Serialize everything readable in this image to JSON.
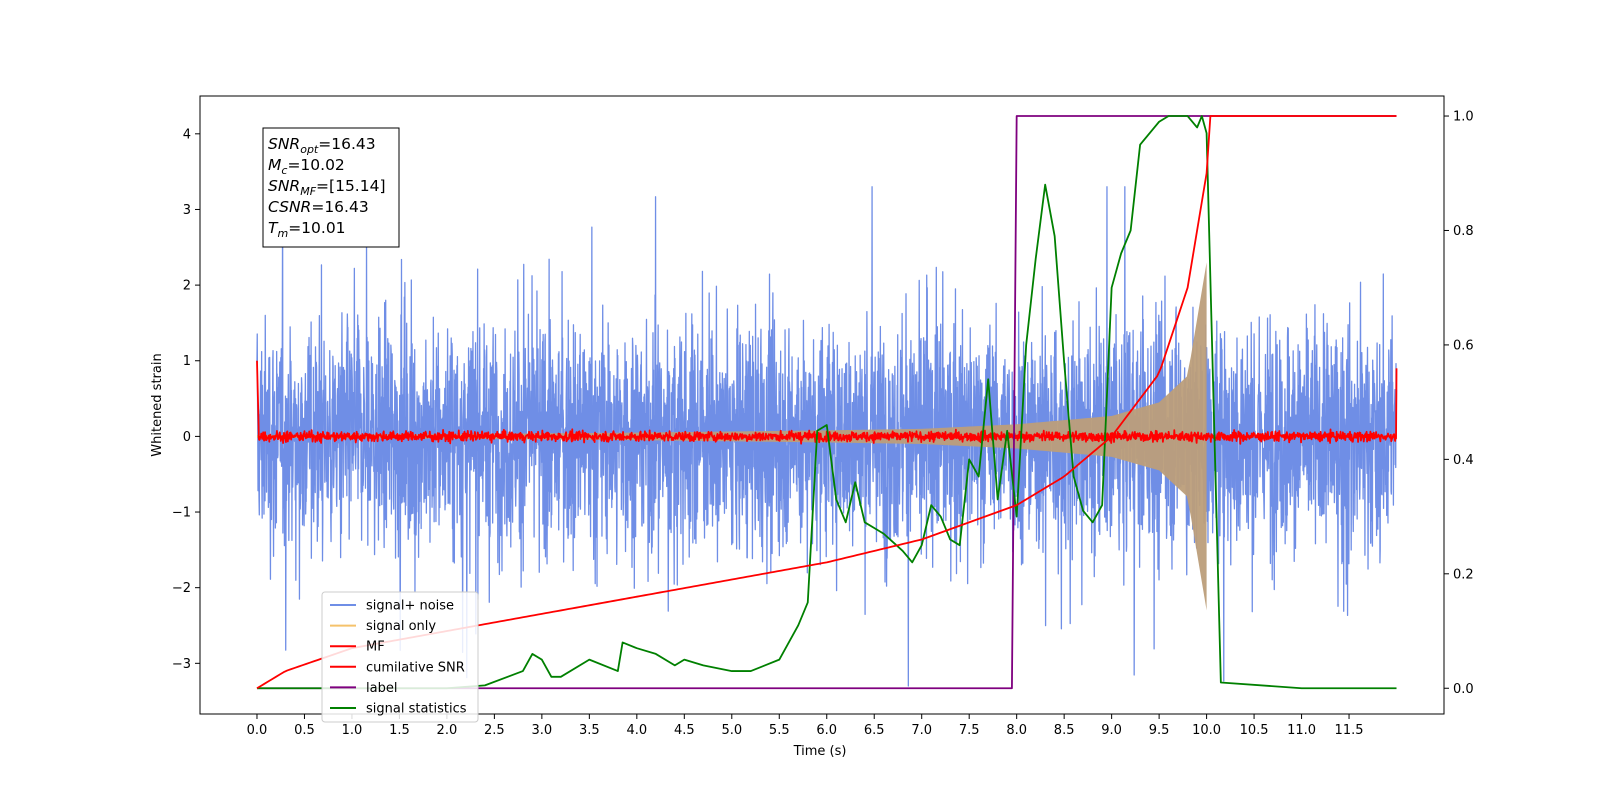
{
  "chart_data": {
    "type": "line",
    "xlabel": "Time (s)",
    "ylabel_left": "Whitened strain",
    "ylabel_right": "",
    "xlim": [
      -0.6,
      12.5
    ],
    "ylim_left": [
      -3.67,
      4.5
    ],
    "ylim_right": [
      -0.045,
      1.035
    ],
    "x_ticks": [
      "0.0",
      "0.5",
      "1.0",
      "1.5",
      "2.0",
      "2.5",
      "3.0",
      "3.5",
      "4.0",
      "4.5",
      "5.0",
      "5.5",
      "6.0",
      "6.5",
      "7.0",
      "7.5",
      "8.0",
      "8.5",
      "9.0",
      "9.5",
      "10.0",
      "10.5",
      "11.0",
      "11.5"
    ],
    "y_ticks_left": [
      "−3",
      "−2",
      "−1",
      "0",
      "1",
      "2",
      "3",
      "4"
    ],
    "y_ticks_right": [
      "0.0",
      "0.2",
      "0.4",
      "0.6",
      "0.8",
      "1.0"
    ],
    "grid": false,
    "legend_position": "lower-left",
    "colors": {
      "signal_noise": "#6f8ee6",
      "signal_only": "#f5c26b",
      "signal_overlap": "#bc9e7a",
      "mf": "#ff0000",
      "cumulative_snr": "#ff0000",
      "label": "#7f007f",
      "signal_statistics": "#008000"
    },
    "series": [
      {
        "name": "signal+ noise",
        "axis": "left",
        "x_range": [
          0.0,
          12.0
        ],
        "amplitude_range": [
          -3.3,
          3.3
        ],
        "rendering": "dense noise"
      },
      {
        "name": "signal only",
        "axis": "left",
        "x_range": [
          0.0,
          10.0
        ],
        "description": "chirp envelope",
        "envelope_x": [
          0,
          2,
          4,
          6,
          7,
          8,
          9,
          9.5,
          9.8,
          10.0
        ],
        "envelope_amp": [
          0.02,
          0.03,
          0.05,
          0.08,
          0.1,
          0.16,
          0.27,
          0.45,
          0.8,
          2.3
        ]
      },
      {
        "name": "MF",
        "axis": "left",
        "x_range": [
          0.0,
          12.0
        ],
        "approx_level": 0.0,
        "noise_amplitude": 0.1,
        "edge_values": [
          1.0,
          0.9
        ]
      },
      {
        "name": "cumilative SNR",
        "axis": "right",
        "x": [
          0.0,
          0.3,
          1,
          2,
          3,
          4,
          5,
          6,
          7,
          7.5,
          8,
          8.5,
          9,
          9.5,
          9.8,
          10.0,
          10.01,
          12.0
        ],
        "values": [
          0.0,
          0.03,
          0.07,
          0.1,
          0.13,
          0.16,
          0.19,
          0.22,
          0.26,
          0.29,
          0.32,
          0.37,
          0.44,
          0.55,
          0.7,
          0.9,
          1.0,
          1.0
        ]
      },
      {
        "name": "label",
        "axis": "right",
        "x": [
          0.0,
          7.95,
          8.0,
          12.0
        ],
        "values": [
          0.0,
          0.0,
          1.0,
          1.0
        ]
      },
      {
        "name": "signal statistics",
        "axis": "right",
        "x": [
          0.0,
          0.3,
          1,
          2,
          2.4,
          2.8,
          2.9,
          3.0,
          3.1,
          3.2,
          3.5,
          3.8,
          3.85,
          4.0,
          4.2,
          4.4,
          4.5,
          4.7,
          5.0,
          5.2,
          5.5,
          5.7,
          5.8,
          5.9,
          6.0,
          6.1,
          6.2,
          6.3,
          6.4,
          6.5,
          6.6,
          6.8,
          6.9,
          7.0,
          7.1,
          7.2,
          7.3,
          7.4,
          7.5,
          7.6,
          7.7,
          7.8,
          7.9,
          8.0,
          8.1,
          8.2,
          8.3,
          8.4,
          8.5,
          8.6,
          8.7,
          8.8,
          8.9,
          9.0,
          9.1,
          9.2,
          9.3,
          9.5,
          9.6,
          9.8,
          9.9,
          9.95,
          10.0,
          10.1,
          10.15,
          11.0,
          12.0
        ],
        "values": [
          0.0,
          0.0,
          0.0,
          0.0,
          0.005,
          0.03,
          0.06,
          0.05,
          0.02,
          0.02,
          0.05,
          0.03,
          0.08,
          0.07,
          0.06,
          0.04,
          0.05,
          0.04,
          0.03,
          0.03,
          0.05,
          0.11,
          0.15,
          0.45,
          0.46,
          0.33,
          0.29,
          0.36,
          0.29,
          0.28,
          0.27,
          0.24,
          0.22,
          0.25,
          0.32,
          0.3,
          0.26,
          0.25,
          0.4,
          0.37,
          0.54,
          0.33,
          0.45,
          0.3,
          0.6,
          0.75,
          0.88,
          0.79,
          0.57,
          0.37,
          0.31,
          0.29,
          0.32,
          0.7,
          0.76,
          0.8,
          0.95,
          0.99,
          1.0,
          1.0,
          0.98,
          1.0,
          0.97,
          0.33,
          0.01,
          0.0,
          0.0
        ]
      }
    ],
    "annotation_box": [
      {
        "main": "SNR",
        "sub": "opt",
        "value": "=16.43"
      },
      {
        "main": "M",
        "sub": "c",
        "value": "=10.02"
      },
      {
        "main": "SNR",
        "sub": "MF",
        "value": "=[15.14]"
      },
      {
        "main": "CSNR",
        "sub": "",
        "value": "=16.43"
      },
      {
        "main": "T",
        "sub": "m",
        "value": "=10.01"
      }
    ]
  }
}
